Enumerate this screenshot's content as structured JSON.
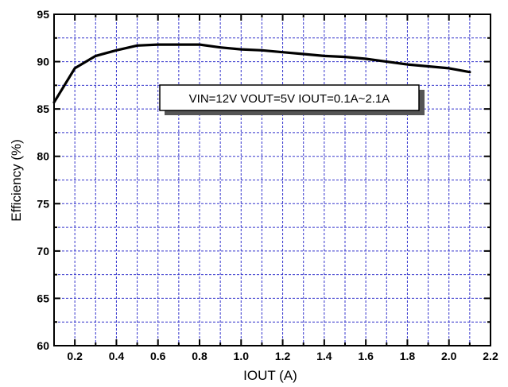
{
  "chart_data": {
    "type": "line",
    "title": "",
    "xlabel": "IOUT (A)",
    "ylabel": "Efficiency (%)",
    "xlim": [
      0.1,
      2.2
    ],
    "ylim": [
      60,
      95
    ],
    "x_ticks": [
      0.2,
      0.4,
      0.6,
      0.8,
      1.0,
      1.2,
      1.4,
      1.6,
      1.8,
      2.0,
      2.2
    ],
    "x_tick_labels": [
      "0.2",
      "0.4",
      "0.6",
      "0.8",
      "1.0",
      "1.2",
      "1.4",
      "1.6",
      "1.8",
      "2.0",
      "2.2"
    ],
    "y_ticks": [
      60,
      65,
      70,
      75,
      80,
      85,
      90,
      95
    ],
    "y_tick_labels": [
      "60",
      "65",
      "70",
      "75",
      "80",
      "85",
      "90",
      "95"
    ],
    "grid": true,
    "legend": "none",
    "annotation": "VIN=12V VOUT=5V IOUT=0.1A~2.1A",
    "series": [
      {
        "color": "#000000",
        "x": [
          0.1,
          0.2,
          0.3,
          0.4,
          0.5,
          0.6,
          0.7,
          0.8,
          0.9,
          1.0,
          1.1,
          1.2,
          1.3,
          1.4,
          1.5,
          1.6,
          1.7,
          1.8,
          1.9,
          2.0,
          2.1
        ],
        "y": [
          85.7,
          89.3,
          90.6,
          91.2,
          91.7,
          91.8,
          91.8,
          91.8,
          91.5,
          91.3,
          91.2,
          91.0,
          90.8,
          90.6,
          90.5,
          90.3,
          90.0,
          89.7,
          89.5,
          89.3,
          88.9
        ]
      }
    ]
  },
  "colors": {
    "grid": "#3333cc",
    "axis": "#000000",
    "line": "#000000",
    "background": "#ffffff"
  }
}
